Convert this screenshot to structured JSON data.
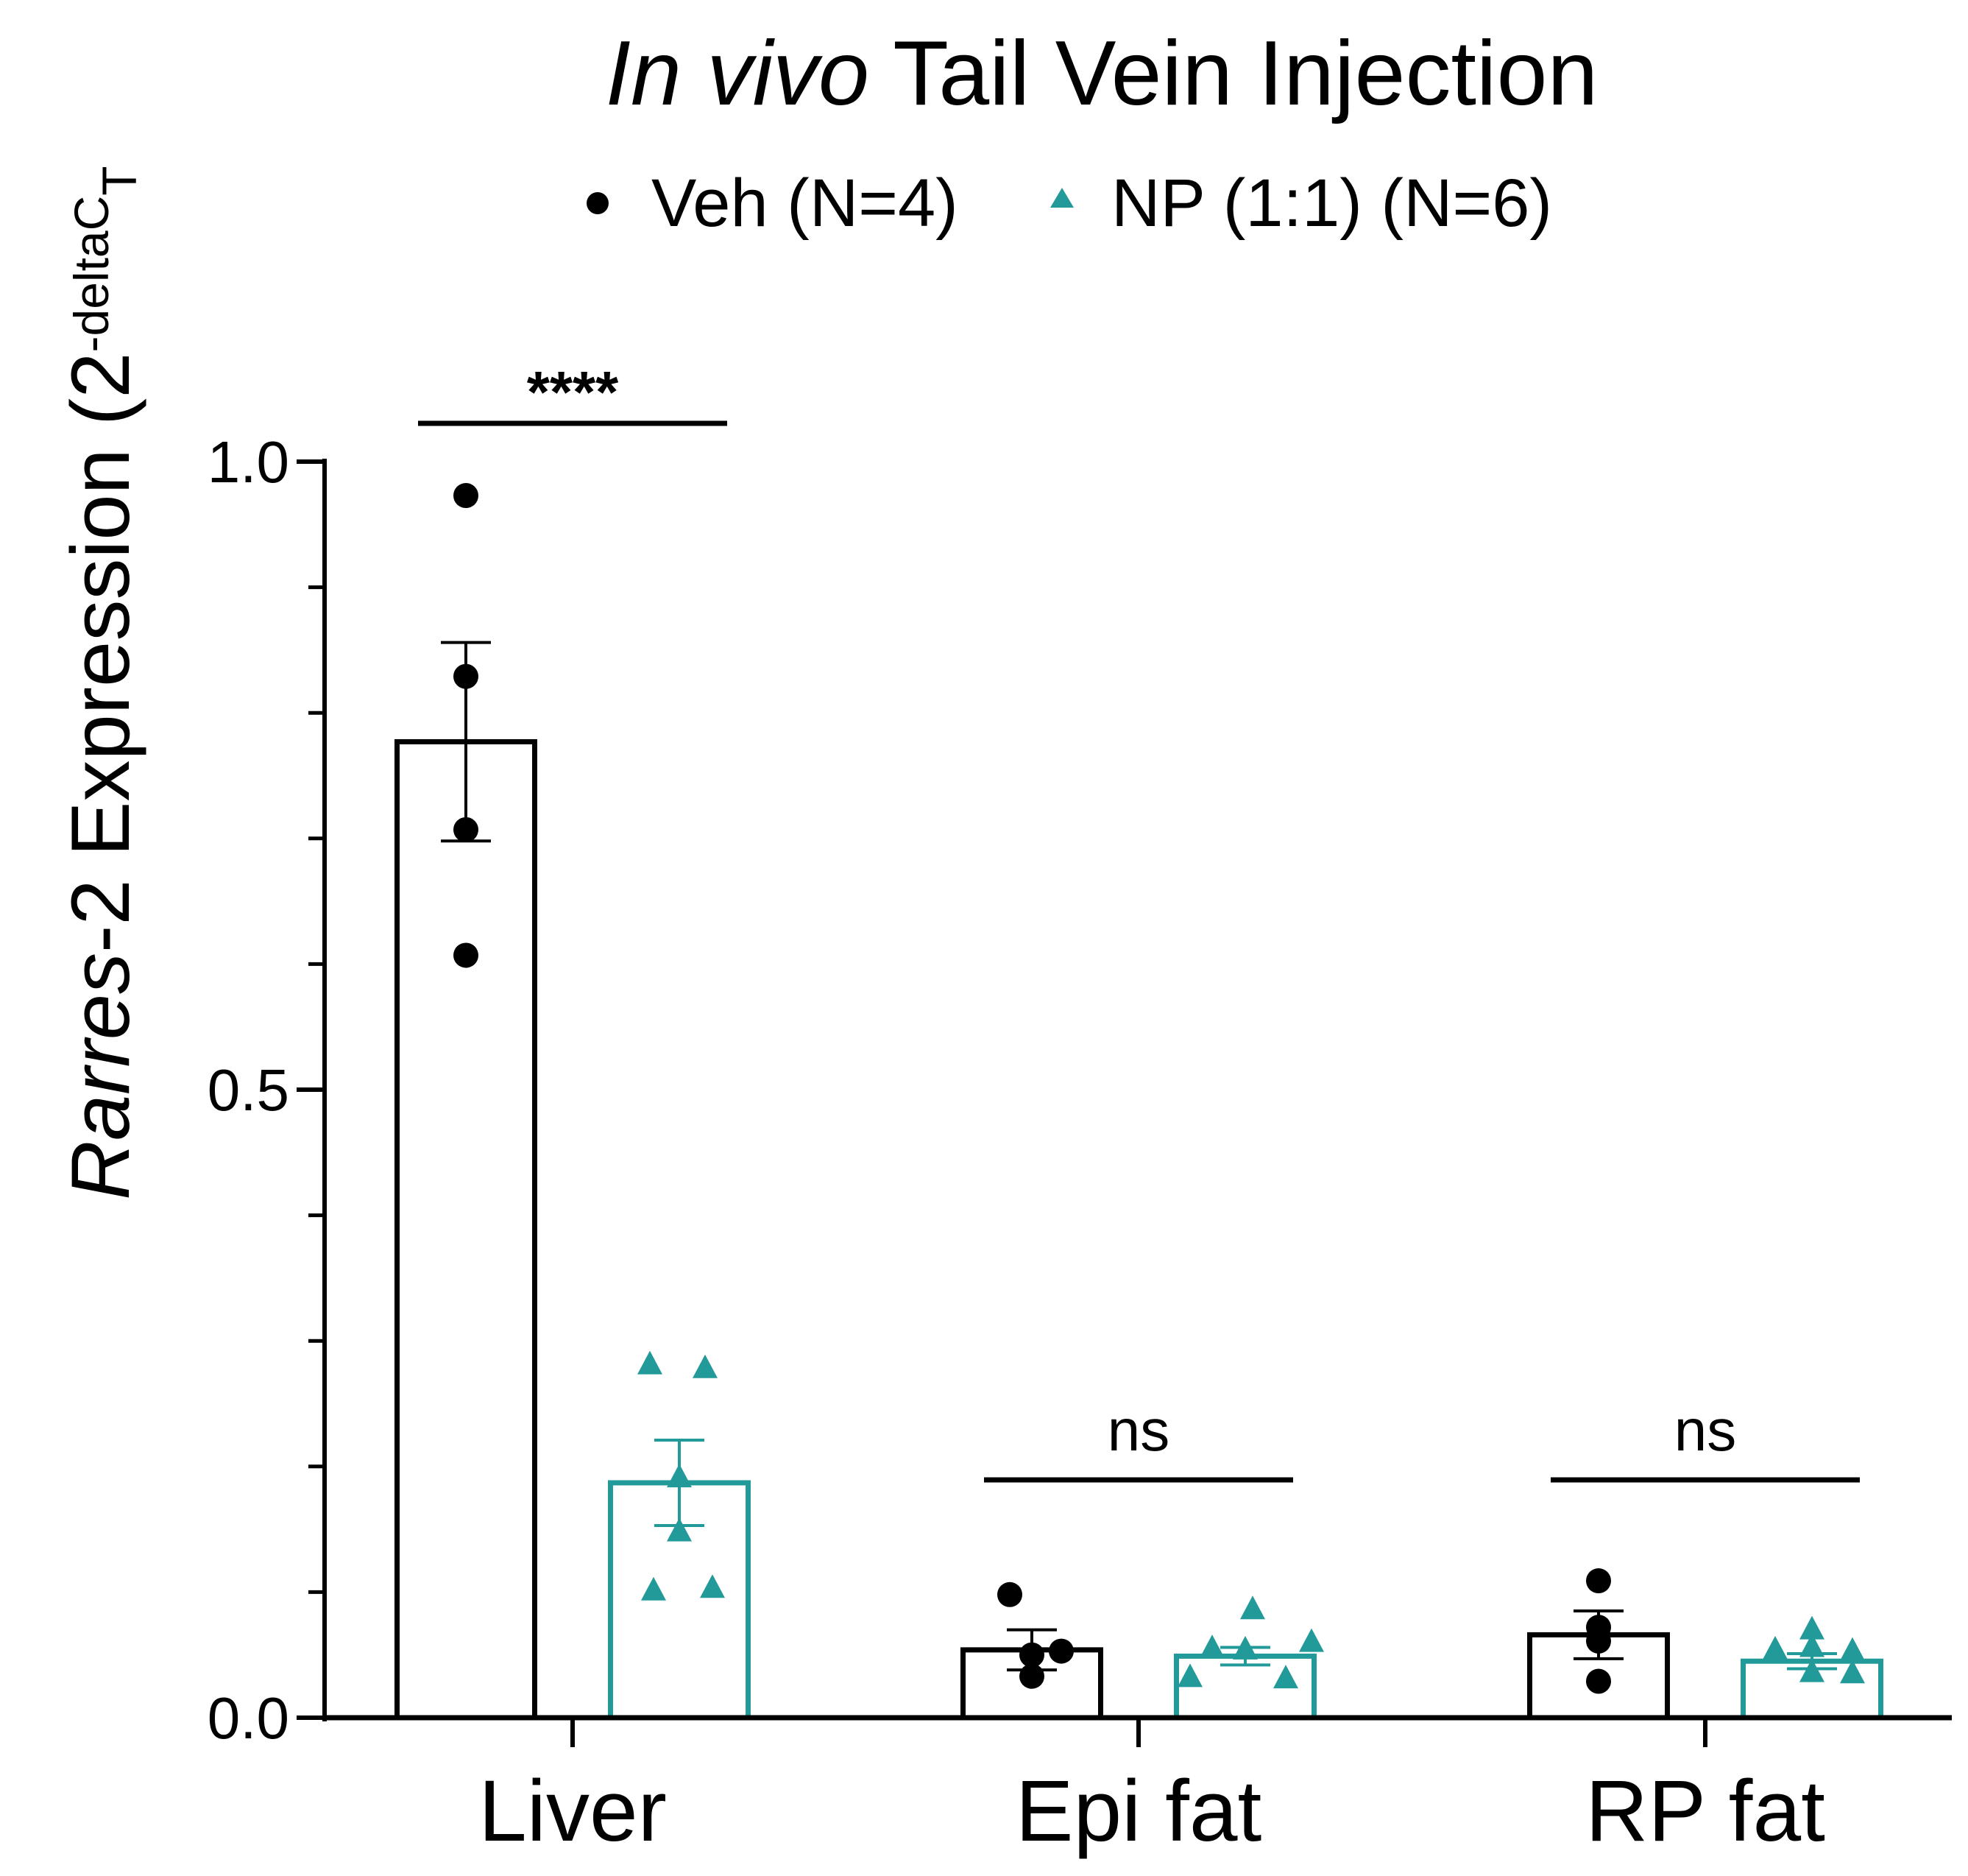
{
  "chart_data": {
    "type": "bar",
    "title_italic": "In vivo",
    "title_rest": " Tail Vein Injection",
    "ylabel_italic": "Rarres",
    "ylabel_rest": "-2 Expression (2",
    "ylabel_sup": "-deltaC",
    "ylabel_sub": "T",
    "ylim": [
      0,
      1.0
    ],
    "yticks": [
      0.0,
      0.5,
      1.0
    ],
    "ytick_labels": [
      "0.0",
      "0.5",
      "1.0"
    ],
    "minor_ytick_step": 0.1,
    "categories": [
      "Liver",
      "Epi fat",
      "RP fat"
    ],
    "series": [
      {
        "name": "Veh (N=4)",
        "color": "#000000",
        "marker": "circle",
        "means": [
          0.777,
          0.054,
          0.066
        ],
        "sem": [
          0.079,
          0.016,
          0.019
        ],
        "points": [
          [
            0.973,
            0.829,
            0.707,
            0.607
          ],
          [
            0.098,
            0.053,
            0.05,
            0.033
          ],
          [
            0.109,
            0.072,
            0.061,
            0.029
          ]
        ]
      },
      {
        "name": "NP (1:1) (N=6)",
        "color": "#239a9a",
        "marker": "triangle",
        "means": [
          0.187,
          0.049,
          0.045
        ],
        "sem": [
          0.034,
          0.007,
          0.006
        ],
        "points": [
          [
            0.281,
            0.278,
            0.191,
            0.148,
            0.103,
            0.101
          ],
          [
            0.086,
            0.06,
            0.055,
            0.054,
            0.032,
            0.031
          ],
          [
            0.07,
            0.056,
            0.054,
            0.053,
            0.036,
            0.035
          ]
        ]
      }
    ],
    "significance": [
      "****",
      "ns",
      "ns"
    ]
  }
}
